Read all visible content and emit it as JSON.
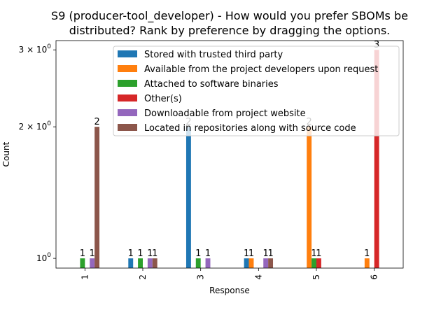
{
  "chart_data": {
    "type": "bar",
    "title_lines": [
      "S9 (producer-tool_developer) - How would you prefer SBOMs be",
      "distributed? Rank by preference by dragging the options."
    ],
    "xlabel": "Response",
    "ylabel": "Count",
    "yscale": "log",
    "ylim": [
      0.95,
      3.15
    ],
    "yticks": [
      {
        "value": 1,
        "base": "10",
        "exp": "0",
        "prefix": ""
      },
      {
        "value": 2,
        "base": "10",
        "exp": "0",
        "prefix": "2 × "
      },
      {
        "value": 3,
        "base": "10",
        "exp": "0",
        "prefix": "3 × "
      }
    ],
    "categories": [
      "1",
      "2",
      "3",
      "4",
      "5",
      "6"
    ],
    "legend_position": "upper right",
    "series": [
      {
        "name": "Stored with trusted third party",
        "color": "#1f77b4",
        "values": [
          0,
          1,
          2,
          1,
          0,
          0
        ]
      },
      {
        "name": "Available from the project developers upon request",
        "color": "#ff7f0e",
        "values": [
          0,
          0,
          0,
          1,
          2,
          1
        ]
      },
      {
        "name": "Attached to software binaries",
        "color": "#2ca02c",
        "values": [
          1,
          1,
          1,
          0,
          1,
          0
        ]
      },
      {
        "name": "Other(s)",
        "color": "#d62728",
        "values": [
          0,
          0,
          0,
          0,
          1,
          3
        ]
      },
      {
        "name": "Downloadable from project website",
        "color": "#9467bd",
        "values": [
          1,
          1,
          1,
          1,
          0,
          0
        ]
      },
      {
        "name": "Located in repositories along with source code",
        "color": "#8c564b",
        "values": [
          2,
          1,
          0,
          1,
          0,
          0
        ]
      }
    ]
  }
}
